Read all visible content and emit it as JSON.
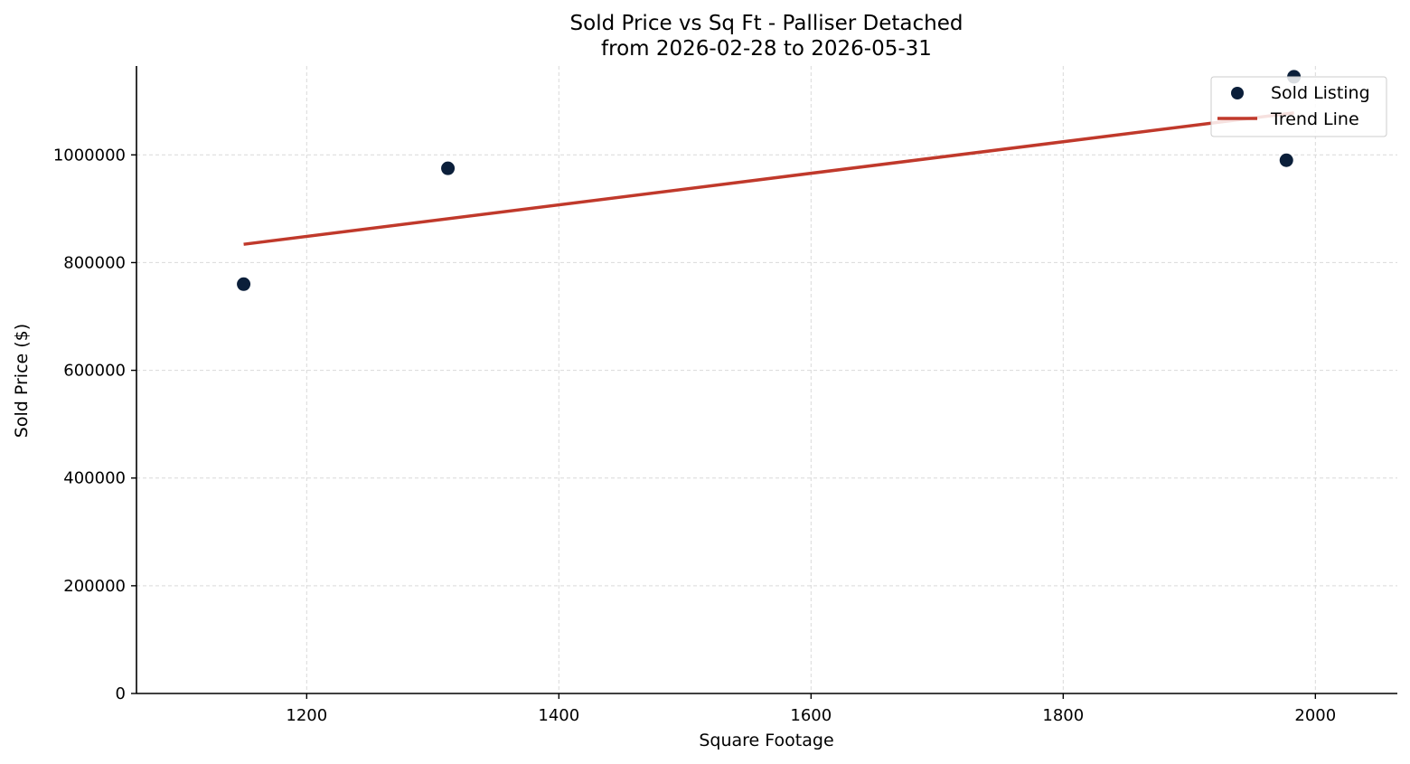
{
  "chart_data": {
    "type": "scatter",
    "title": "Sold Price vs Sq Ft - Palliser Detached",
    "subtitle": "from 2026-02-28 to 2026-05-31",
    "xlabel": "Square Footage",
    "ylabel": "Sold Price ($)",
    "xlim": [
      1065,
      2065
    ],
    "ylim": [
      0,
      1165000
    ],
    "xticks": [
      1200,
      1400,
      1600,
      1800,
      2000
    ],
    "yticks": [
      0,
      200000,
      400000,
      600000,
      800000,
      1000000
    ],
    "grid": true,
    "legend_position": "top-right",
    "series": [
      {
        "name": "Sold Listing",
        "kind": "scatter",
        "color": "#0b1f3a",
        "points": [
          {
            "x": 1150,
            "y": 760000
          },
          {
            "x": 1312,
            "y": 975000
          },
          {
            "x": 1977,
            "y": 990000
          },
          {
            "x": 1983,
            "y": 1145000
          }
        ]
      },
      {
        "name": "Trend Line",
        "kind": "line",
        "color": "#c0392b",
        "points": [
          {
            "x": 1150,
            "y": 834000
          },
          {
            "x": 1983,
            "y": 1078000
          }
        ]
      }
    ]
  }
}
